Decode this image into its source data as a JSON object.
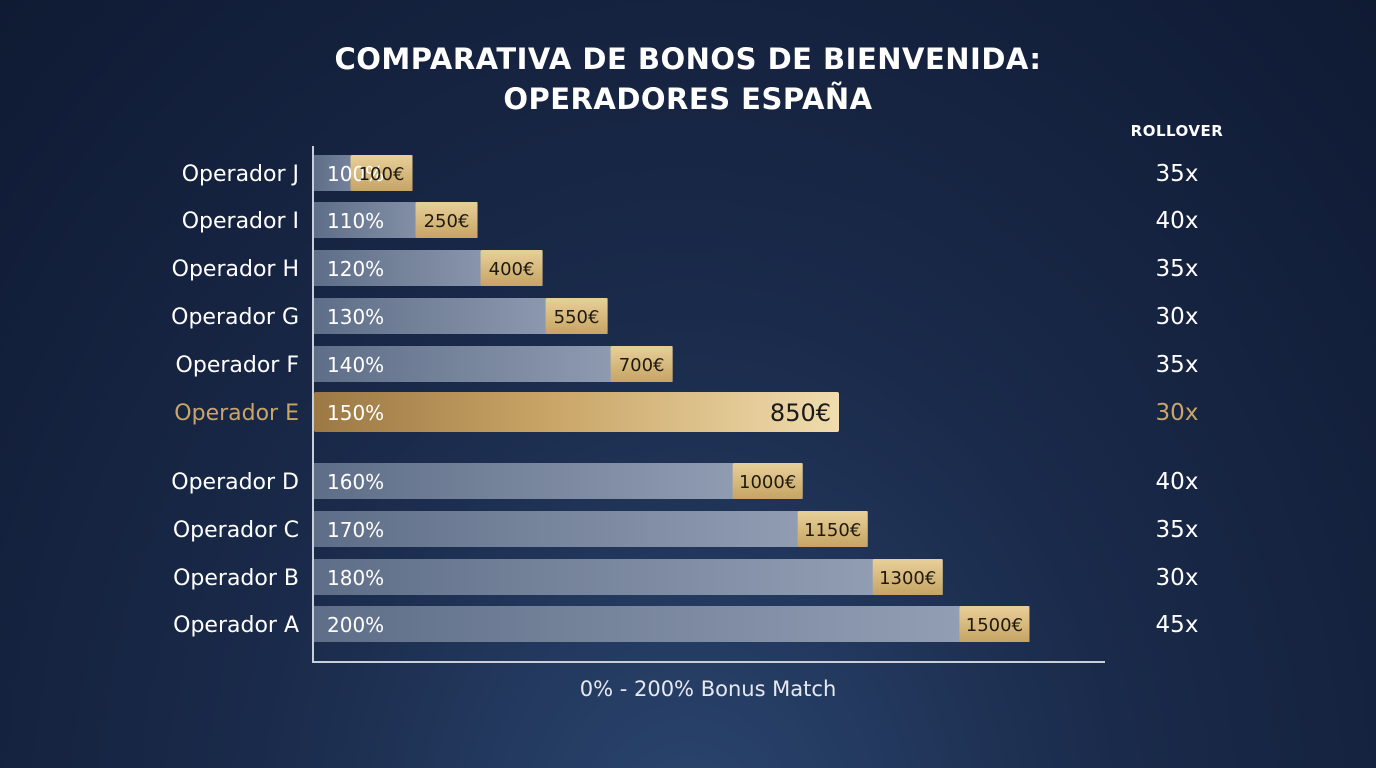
{
  "chart_data": {
    "type": "bar",
    "title_line1": "COMPARATIVA DE BONOS DE BIENVENIDA:",
    "title_line2": "OPERADORES ESPAÑA",
    "rollover_header": "ROLLOVER",
    "xlabel": "0% - 200% Bonus Match",
    "value_unit": "€",
    "xlim": [
      0,
      1500
    ],
    "highlight_color": "#c9a567",
    "bar_color": "#7b8aa3",
    "categories": [
      "Operador J",
      "Operador I",
      "Operador H",
      "Operador G",
      "Operador F",
      "Operador E",
      "Operador D",
      "Operador C",
      "Operador B",
      "Operador A"
    ],
    "match_percent_labels": [
      "100%",
      "110%",
      "120%",
      "130%",
      "140%",
      "150%",
      "160%",
      "170%",
      "180%",
      "200%"
    ],
    "bonus_values": [
      100,
      250,
      400,
      550,
      700,
      850,
      1000,
      1150,
      1300,
      1500
    ],
    "bonus_labels": [
      "100€",
      "250€",
      "400€",
      "550€",
      "700€",
      "850€",
      "1000€",
      "1150€",
      "1300€",
      "1500€"
    ],
    "rollover_labels": [
      "35x",
      "40x",
      "35x",
      "30x",
      "35x",
      "30x",
      "40x",
      "35x",
      "30x",
      "45x"
    ],
    "highlighted": "Operador E"
  }
}
